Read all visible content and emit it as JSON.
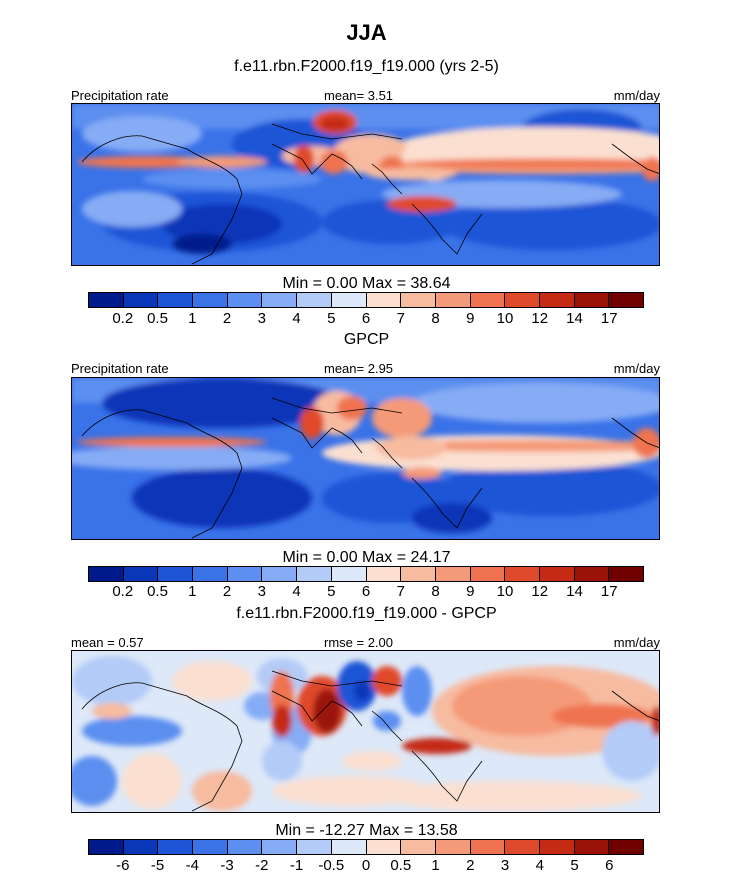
{
  "title": "JJA",
  "panels": [
    {
      "id": "model",
      "subtitle": "f.e11.rbn.F2000.f19_f19.000 (yrs 2-5)",
      "left_label": "Precipitation rate",
      "center_label": "mean=   3.51",
      "right_label": "mm/day",
      "stats": "Min =   0.00 Max =  38.64",
      "colorbar_labels": [
        "0.2",
        "0.5",
        "1",
        "2",
        "3",
        "4",
        "5",
        "6",
        "7",
        "8",
        "9",
        "10",
        "12",
        "14",
        "17"
      ],
      "colorbar_colors": [
        "#001a8c",
        "#0a36b8",
        "#1e55d6",
        "#3a72e8",
        "#5c8ff0",
        "#86acf5",
        "#b3cbf7",
        "#dde8f8",
        "#fbe0d2",
        "#f7bba0",
        "#f49a78",
        "#ef7350",
        "#e04a2c",
        "#c42a14",
        "#9a1208",
        "#700000"
      ],
      "chart_data": {
        "type": "heatmap",
        "title": "f.e11.rbn.F2000.f19_f19.000 (yrs 2-5)",
        "variable": "Precipitation rate",
        "units": "mm/day",
        "mean": 3.51,
        "min": 0.0,
        "max": 38.64,
        "levels": [
          0.2,
          0.5,
          1,
          2,
          3,
          4,
          5,
          6,
          7,
          8,
          9,
          10,
          12,
          14,
          17
        ]
      }
    },
    {
      "id": "obs",
      "subtitle": "GPCP",
      "left_label": "Precipitation rate",
      "center_label": "mean=   2.95",
      "right_label": "mm/day",
      "stats": "Min =   0.00 Max =  24.17",
      "colorbar_labels": [
        "0.2",
        "0.5",
        "1",
        "2",
        "3",
        "4",
        "5",
        "6",
        "7",
        "8",
        "9",
        "10",
        "12",
        "14",
        "17"
      ],
      "colorbar_colors": [
        "#001a8c",
        "#0a36b8",
        "#1e55d6",
        "#3a72e8",
        "#5c8ff0",
        "#86acf5",
        "#b3cbf7",
        "#dde8f8",
        "#fbe0d2",
        "#f7bba0",
        "#f49a78",
        "#ef7350",
        "#e04a2c",
        "#c42a14",
        "#9a1208",
        "#700000"
      ],
      "chart_data": {
        "type": "heatmap",
        "title": "GPCP",
        "variable": "Precipitation rate",
        "units": "mm/day",
        "mean": 2.95,
        "min": 0.0,
        "max": 24.17,
        "levels": [
          0.2,
          0.5,
          1,
          2,
          3,
          4,
          5,
          6,
          7,
          8,
          9,
          10,
          12,
          14,
          17
        ]
      }
    },
    {
      "id": "diff",
      "subtitle": "f.e11.rbn.F2000.f19_f19.000 - GPCP",
      "left_label": "mean =   0.57",
      "center_label": "rmse =   2.00",
      "right_label": "mm/day",
      "stats": "Min = -12.27 Max =  13.58",
      "colorbar_labels": [
        "-6",
        "-5",
        "-4",
        "-3",
        "-2",
        "-1",
        "-0.5",
        "0",
        "0.5",
        "1",
        "2",
        "3",
        "4",
        "5",
        "6"
      ],
      "colorbar_colors": [
        "#001a8c",
        "#0a36b8",
        "#1e55d6",
        "#3a72e8",
        "#5c8ff0",
        "#86acf5",
        "#b3cbf7",
        "#dde8f8",
        "#fbe0d2",
        "#f7bba0",
        "#f49a78",
        "#ef7350",
        "#e04a2c",
        "#c42a14",
        "#9a1208",
        "#700000"
      ],
      "chart_data": {
        "type": "heatmap",
        "title": "f.e11.rbn.F2000.f19_f19.000 - GPCP",
        "units": "mm/day",
        "mean": 0.57,
        "rmse": 2.0,
        "min": -12.27,
        "max": 13.58,
        "levels": [
          -6,
          -5,
          -4,
          -3,
          -2,
          -1,
          -0.5,
          0,
          0.5,
          1,
          2,
          3,
          4,
          5,
          6
        ]
      }
    }
  ]
}
